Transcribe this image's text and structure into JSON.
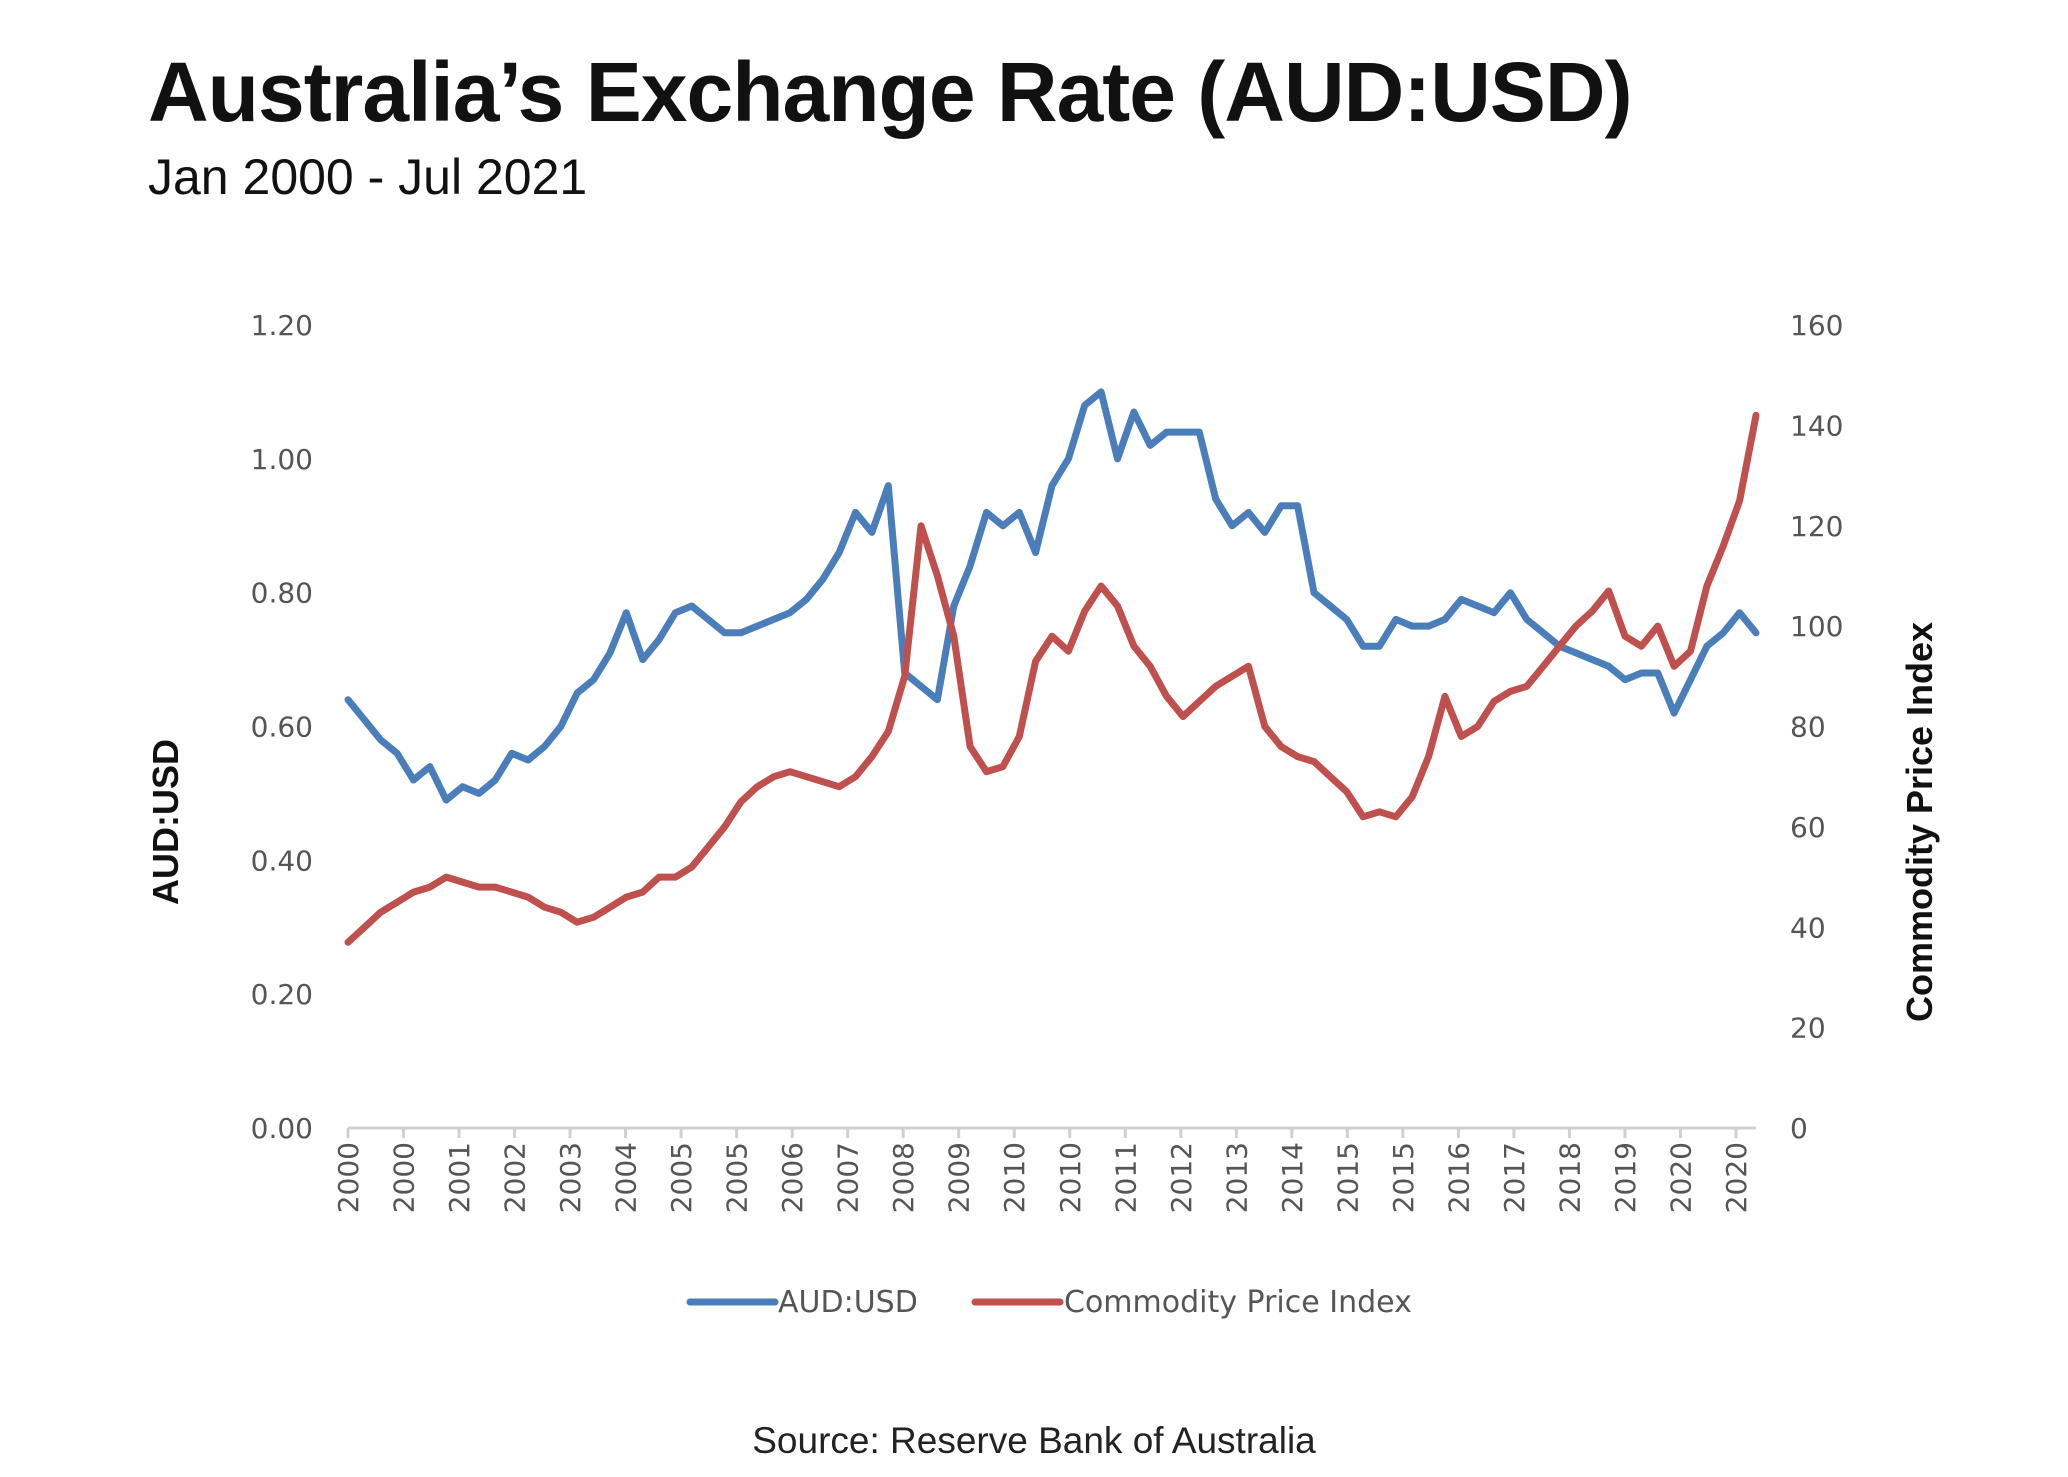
{
  "chart_data": {
    "type": "line",
    "title": "Australia’s Exchange Rate (AUD:USD)",
    "subtitle": "Jan 2000 - Jul 2021",
    "source": "Source: Reserve Bank of Australia",
    "ylabel": "AUD:USD",
    "y2label": "Commodity Price Index",
    "ylim": [
      0,
      1.2
    ],
    "y2lim": [
      0,
      160
    ],
    "yticks": [
      "0.00",
      "0.20",
      "0.40",
      "0.60",
      "0.80",
      "1.00",
      "1.20"
    ],
    "y2ticks": [
      "0",
      "20",
      "40",
      "60",
      "80",
      "100",
      "120",
      "140",
      "160"
    ],
    "xlim": [
      2000.0,
      2021.5
    ],
    "xtick_labels": [
      "2000",
      "2000",
      "2001",
      "2002",
      "2003",
      "2004",
      "2005",
      "2005",
      "2006",
      "2007",
      "2008",
      "2009",
      "2010",
      "2010",
      "2011",
      "2012",
      "2013",
      "2014",
      "2015",
      "2015",
      "2016",
      "2017",
      "2018",
      "2019",
      "2020",
      "2020"
    ],
    "legend_position": "bottom",
    "grid": false,
    "series": [
      {
        "name": "AUD:USD",
        "axis": "left",
        "color": "#4a7ebb",
        "x": [
          2000.0,
          2000.25,
          2000.5,
          2000.75,
          2001.0,
          2001.25,
          2001.5,
          2001.75,
          2002.0,
          2002.25,
          2002.5,
          2002.75,
          2003.0,
          2003.25,
          2003.5,
          2003.75,
          2004.0,
          2004.25,
          2004.5,
          2004.75,
          2005.0,
          2005.25,
          2005.5,
          2005.75,
          2006.0,
          2006.25,
          2006.5,
          2006.75,
          2007.0,
          2007.25,
          2007.5,
          2007.75,
          2008.0,
          2008.25,
          2008.5,
          2008.75,
          2009.0,
          2009.25,
          2009.5,
          2009.75,
          2010.0,
          2010.25,
          2010.5,
          2010.75,
          2011.0,
          2011.25,
          2011.5,
          2011.75,
          2012.0,
          2012.25,
          2012.5,
          2012.75,
          2013.0,
          2013.25,
          2013.5,
          2013.75,
          2014.0,
          2014.25,
          2014.5,
          2014.75,
          2015.0,
          2015.25,
          2015.5,
          2015.75,
          2016.0,
          2016.25,
          2016.5,
          2016.75,
          2017.0,
          2017.25,
          2017.5,
          2017.75,
          2018.0,
          2018.25,
          2018.5,
          2018.75,
          2019.0,
          2019.25,
          2019.5,
          2019.75,
          2020.0,
          2020.25,
          2020.5,
          2020.75,
          2021.0,
          2021.25,
          2021.5
        ],
        "values": [
          0.64,
          0.61,
          0.58,
          0.56,
          0.52,
          0.54,
          0.49,
          0.51,
          0.5,
          0.52,
          0.56,
          0.55,
          0.57,
          0.6,
          0.65,
          0.67,
          0.71,
          0.77,
          0.7,
          0.73,
          0.77,
          0.78,
          0.76,
          0.74,
          0.74,
          0.75,
          0.76,
          0.77,
          0.79,
          0.82,
          0.86,
          0.92,
          0.89,
          0.96,
          0.68,
          0.66,
          0.64,
          0.78,
          0.84,
          0.92,
          0.9,
          0.92,
          0.86,
          0.96,
          1.0,
          1.08,
          1.1,
          1.0,
          1.07,
          1.02,
          1.04,
          1.04,
          1.04,
          0.94,
          0.9,
          0.92,
          0.89,
          0.93,
          0.93,
          0.8,
          0.78,
          0.76,
          0.72,
          0.72,
          0.76,
          0.75,
          0.75,
          0.76,
          0.79,
          0.78,
          0.77,
          0.8,
          0.76,
          0.74,
          0.72,
          0.71,
          0.7,
          0.69,
          0.67,
          0.68,
          0.68,
          0.62,
          0.67,
          0.72,
          0.74,
          0.77,
          0.74
        ]
      },
      {
        "name": "Commodity Price Index",
        "axis": "right",
        "color": "#c0504d",
        "x": [
          2000.0,
          2000.25,
          2000.5,
          2000.75,
          2001.0,
          2001.25,
          2001.5,
          2001.75,
          2002.0,
          2002.25,
          2002.5,
          2002.75,
          2003.0,
          2003.25,
          2003.5,
          2003.75,
          2004.0,
          2004.25,
          2004.5,
          2004.75,
          2005.0,
          2005.25,
          2005.5,
          2005.75,
          2006.0,
          2006.25,
          2006.5,
          2006.75,
          2007.0,
          2007.25,
          2007.5,
          2007.75,
          2008.0,
          2008.25,
          2008.5,
          2008.75,
          2009.0,
          2009.25,
          2009.5,
          2009.75,
          2010.0,
          2010.25,
          2010.5,
          2010.75,
          2011.0,
          2011.25,
          2011.5,
          2011.75,
          2012.0,
          2012.25,
          2012.5,
          2012.75,
          2013.0,
          2013.25,
          2013.5,
          2013.75,
          2014.0,
          2014.25,
          2014.5,
          2014.75,
          2015.0,
          2015.25,
          2015.5,
          2015.75,
          2016.0,
          2016.25,
          2016.5,
          2016.75,
          2017.0,
          2017.25,
          2017.5,
          2017.75,
          2018.0,
          2018.25,
          2018.5,
          2018.75,
          2019.0,
          2019.25,
          2019.5,
          2019.75,
          2020.0,
          2020.25,
          2020.5,
          2020.75,
          2021.0,
          2021.25,
          2021.5
        ],
        "values": [
          37,
          40,
          43,
          45,
          47,
          48,
          50,
          49,
          48,
          48,
          47,
          46,
          44,
          43,
          41,
          42,
          44,
          46,
          47,
          50,
          50,
          52,
          56,
          60,
          65,
          68,
          70,
          71,
          70,
          69,
          68,
          70,
          74,
          79,
          90,
          120,
          110,
          98,
          76,
          71,
          72,
          78,
          93,
          98,
          95,
          103,
          108,
          104,
          96,
          92,
          86,
          82,
          85,
          88,
          90,
          92,
          80,
          76,
          74,
          73,
          70,
          67,
          62,
          63,
          62,
          66,
          74,
          86,
          78,
          80,
          85,
          87,
          88,
          92,
          96,
          100,
          103,
          107,
          98,
          96,
          100,
          92,
          95,
          108,
          116,
          125,
          142
        ]
      }
    ]
  }
}
